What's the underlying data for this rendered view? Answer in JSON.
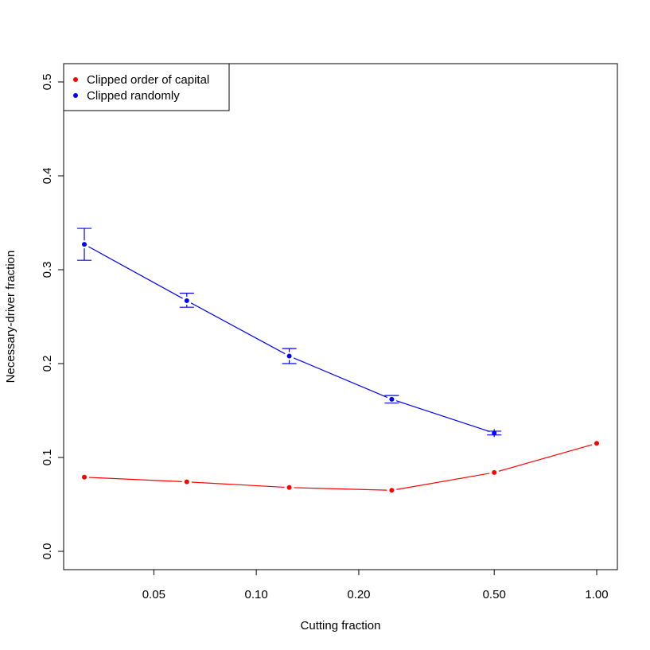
{
  "chart_data": {
    "type": "line",
    "title": "",
    "xlabel": "Cutting fraction",
    "ylabel": "Necessary-driver fraction",
    "x_scale": "log",
    "xlim": [
      0.03125,
      1.0
    ],
    "ylim": [
      0.0,
      0.5
    ],
    "x_ticks": [
      0.05,
      0.1,
      0.2,
      0.5,
      1.0
    ],
    "x_tick_labels": [
      "0.05",
      "0.10",
      "0.20",
      "0.50",
      "1.00"
    ],
    "y_ticks": [
      0.0,
      0.1,
      0.2,
      0.3,
      0.4,
      0.5
    ],
    "y_tick_labels": [
      "0.0",
      "0.1",
      "0.2",
      "0.3",
      "0.4",
      "0.5"
    ],
    "grid": false,
    "legend_position": "top-left",
    "series": [
      {
        "name": "Clipped order of capital",
        "color": "#ff0000",
        "points": [
          {
            "x": 0.03125,
            "y": 0.079
          },
          {
            "x": 0.0625,
            "y": 0.074
          },
          {
            "x": 0.125,
            "y": 0.068
          },
          {
            "x": 0.25,
            "y": 0.065
          },
          {
            "x": 0.5,
            "y": 0.084
          },
          {
            "x": 1.0,
            "y": 0.115
          }
        ]
      },
      {
        "name": "Clipped randomly",
        "color": "#0000ff",
        "points": [
          {
            "x": 0.03125,
            "y": 0.327,
            "err_low": 0.31,
            "err_high": 0.344
          },
          {
            "x": 0.0625,
            "y": 0.267,
            "err_low": 0.26,
            "err_high": 0.275
          },
          {
            "x": 0.125,
            "y": 0.208,
            "err_low": 0.2,
            "err_high": 0.216
          },
          {
            "x": 0.25,
            "y": 0.162,
            "err_low": 0.158,
            "err_high": 0.166
          },
          {
            "x": 0.5,
            "y": 0.126,
            "err_low": 0.124,
            "err_high": 0.128
          }
        ]
      }
    ]
  }
}
